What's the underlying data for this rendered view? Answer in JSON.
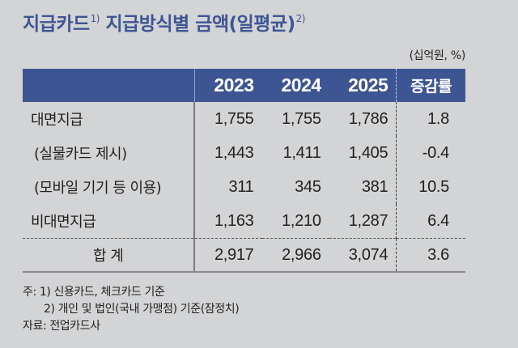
{
  "title": {
    "text": "지급카드",
    "sup1": "1)",
    "text2": " 지급방식별 금액(일평균)",
    "sup2": "2)"
  },
  "unit": "(십억원, %)",
  "table": {
    "header": {
      "label": "",
      "years": [
        "2023",
        "2024",
        "2025"
      ],
      "rate": "증감률"
    },
    "rows": [
      {
        "label": "대면지급",
        "values": [
          "1,755",
          "1,755",
          "1,786"
        ],
        "rate": "1.8"
      },
      {
        "label": "(실물카드 제시)",
        "values": [
          "1,443",
          "1,411",
          "1,405"
        ],
        "rate": "-0.4"
      },
      {
        "label": "(모바일 기기 등 이용)",
        "values": [
          "311",
          "345",
          "381"
        ],
        "rate": "10.5"
      },
      {
        "label": "비대면지급",
        "values": [
          "1,163",
          "1,210",
          "1,287"
        ],
        "rate": "6.4"
      }
    ],
    "total": {
      "label": "합 계",
      "values": [
        "2,917",
        "2,966",
        "3,074"
      ],
      "rate": "3.6"
    }
  },
  "notes": {
    "note1": "주: 1) 신용카드, 체크카드 기준",
    "note2": "2) 개인 및 법인(국내 가맹점) 기준(잠정치)",
    "source": "자료: 전업카드사"
  },
  "colors": {
    "header_bg": "#3e5593",
    "title": "#3e5593",
    "background": "#d3d4d6"
  }
}
